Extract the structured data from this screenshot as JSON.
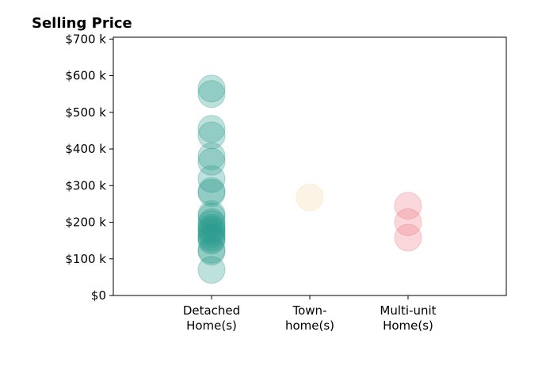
{
  "chart_data": {
    "type": "scatter",
    "title": "Selling Price",
    "xlabel": "",
    "ylabel": "",
    "categories": [
      [
        "Detached",
        "Home(s)"
      ],
      [
        "Town-",
        "home(s)"
      ],
      [
        "Multi-unit",
        "Home(s)"
      ]
    ],
    "ylim": [
      0,
      705000
    ],
    "yticks": [
      {
        "value": 0,
        "label": "$0"
      },
      {
        "value": 100000,
        "label": "$100 k"
      },
      {
        "value": 200000,
        "label": "$200 k"
      },
      {
        "value": 300000,
        "label": "$300 k"
      },
      {
        "value": 400000,
        "label": "$400 k"
      },
      {
        "value": 500000,
        "label": "$500 k"
      },
      {
        "value": 600000,
        "label": "$600 k"
      },
      {
        "value": 700000,
        "label": "$700 k"
      }
    ],
    "grid": false,
    "series": [
      {
        "category_index": 0,
        "color": "#2a9d8f",
        "values": [
          565000,
          550000,
          455000,
          437000,
          380000,
          365000,
          318000,
          285000,
          280000,
          222000,
          215000,
          200000,
          195000,
          185000,
          180000,
          175000,
          168000,
          160000,
          155000,
          150000,
          125000,
          120000,
          70000
        ]
      },
      {
        "category_index": 1,
        "color": "#f4d8a8",
        "values": [
          268000
        ]
      },
      {
        "category_index": 2,
        "color": "#ef7a85",
        "values": [
          245000,
          200000,
          158000
        ]
      }
    ]
  }
}
